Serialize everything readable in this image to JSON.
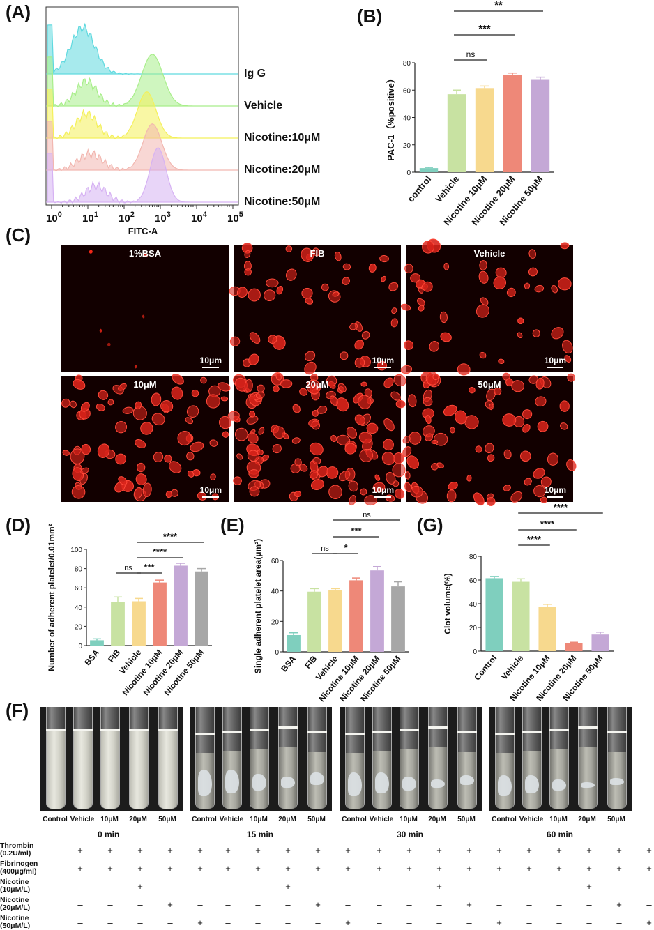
{
  "panels": {
    "A": "(A)",
    "B": "(B)",
    "C": "(C)",
    "D": "(D)",
    "E": "(E)",
    "F": "(F)",
    "G": "(G)"
  },
  "panelA": {
    "series": [
      "Ig G",
      "Vehicle",
      "Nicotine:10μM",
      "Nicotine:20μM",
      "Nicotine:50μM"
    ],
    "colors": [
      "#5fd9df",
      "#a8ee8a",
      "#f4f05a",
      "#f2b7b0",
      "#d6b2f3"
    ],
    "xtick_bases": [
      "10",
      "10",
      "10",
      "10",
      "10",
      "10"
    ],
    "xtick_exps": [
      "0",
      "1",
      "2",
      "3",
      "4",
      "5"
    ],
    "xlabel": "FITC-A"
  },
  "panelC": {
    "images": [
      {
        "label": "1%BSA",
        "scale": "10μm",
        "density": 0
      },
      {
        "label": "FIB",
        "scale": "10μm",
        "density": 2
      },
      {
        "label": "Vehicle",
        "scale": "10μm",
        "density": 2
      },
      {
        "label": "10μM",
        "scale": "10μm",
        "density": 3
      },
      {
        "label": "20μM",
        "scale": "10μm",
        "density": 4
      },
      {
        "label": "50μM",
        "scale": "10μm",
        "density": 3
      }
    ]
  },
  "chart_data": [
    {
      "panel": "B",
      "type": "bar",
      "categories": [
        "control",
        "Vehicle",
        "Nicotine 10μM",
        "Nicotine 20μM",
        "Nicotine 50μM"
      ],
      "values": [
        3,
        57,
        61.5,
        71,
        67.5
      ],
      "errors": [
        0.5,
        3,
        1.5,
        1.5,
        2
      ],
      "colors": [
        "#7fcfbe",
        "#c8e2a2",
        "#f7d98e",
        "#ee8878",
        "#c4a8d6"
      ],
      "ylabel": "PAC-1（%positive）",
      "ylim": [
        0,
        80
      ],
      "yticks": [
        0,
        20,
        40,
        60,
        80
      ],
      "significance": [
        {
          "from": 1,
          "to": 2,
          "label": "ns",
          "level": 1
        },
        {
          "from": 1,
          "to": 3,
          "label": "***",
          "level": 2
        },
        {
          "from": 1,
          "to": 4,
          "label": "**",
          "level": 3
        }
      ]
    },
    {
      "panel": "D",
      "type": "bar",
      "categories": [
        "BSA",
        "FIB",
        "Vehicle",
        "Nicotine 10μM",
        "Nicotine 20μM",
        "Nicotine 50μM"
      ],
      "values": [
        5.5,
        45.5,
        46,
        65.5,
        83,
        77
      ],
      "errors": [
        1.5,
        5,
        3,
        2.5,
        2.5,
        3
      ],
      "colors": [
        "#7fcfbe",
        "#c8e2a2",
        "#f7d98e",
        "#ee8878",
        "#c4a8d6",
        "#a7a7a7"
      ],
      "ylabel": "Number of adherent platelet/0.01mm²",
      "ylim": [
        0,
        100
      ],
      "yticks": [
        0,
        20,
        40,
        60,
        80,
        100
      ],
      "significance": [
        {
          "from": 1,
          "to": 2,
          "label": "ns",
          "level": 1
        },
        {
          "from": 2,
          "to": 3,
          "label": "***",
          "level": 1
        },
        {
          "from": 2,
          "to": 4,
          "label": "****",
          "level": 2
        },
        {
          "from": 2,
          "to": 5,
          "label": "****",
          "level": 3
        }
      ]
    },
    {
      "panel": "E",
      "type": "bar",
      "categories": [
        "BSA",
        "FIB",
        "Vehicle",
        "Nicotine 10μM",
        "Nicotine 20μM",
        "Nicotine 50μM"
      ],
      "values": [
        11,
        39.5,
        40.5,
        47,
        53.5,
        43
      ],
      "errors": [
        1.5,
        2,
        1,
        1.5,
        2.5,
        3
      ],
      "colors": [
        "#7fcfbe",
        "#c8e2a2",
        "#f7d98e",
        "#ee8878",
        "#c4a8d6",
        "#a7a7a7"
      ],
      "ylabel": "Single adherent platelet area(μm²)",
      "ylim": [
        0,
        60
      ],
      "yticks": [
        0,
        20,
        40,
        60
      ],
      "significance": [
        {
          "from": 1,
          "to": 2,
          "label": "ns",
          "level": 1
        },
        {
          "from": 2,
          "to": 3,
          "label": "*",
          "level": 1
        },
        {
          "from": 2,
          "to": 4,
          "label": "***",
          "level": 2
        },
        {
          "from": 2,
          "to": 5,
          "label": "ns",
          "level": 3
        }
      ]
    },
    {
      "panel": "G",
      "type": "bar",
      "categories": [
        "Control",
        "Vehicle",
        "Nicotine 10μM",
        "Nicotine 20μM",
        "Nicotine 50μM"
      ],
      "values": [
        61.5,
        58.5,
        37.5,
        6.5,
        14
      ],
      "errors": [
        1.5,
        2.5,
        2,
        1,
        2
      ],
      "colors": [
        "#7fcfbe",
        "#c8e2a2",
        "#f7d98e",
        "#ee8878",
        "#c4a8d6"
      ],
      "ylabel": "Clot volume(%)",
      "ylim": [
        0,
        80
      ],
      "yticks": [
        0,
        20,
        40,
        60,
        80
      ],
      "significance": [
        {
          "from": 1,
          "to": 2,
          "label": "****",
          "level": 1
        },
        {
          "from": 1,
          "to": 3,
          "label": "****",
          "level": 2
        },
        {
          "from": 1,
          "to": 4,
          "label": "****",
          "level": 3
        }
      ]
    }
  ],
  "panelF": {
    "groups": [
      {
        "time": "0 min",
        "tubes": [
          "Control",
          "Vehicle",
          "10μM",
          "20μM",
          "50μM"
        ],
        "clot": false
      },
      {
        "time": "15 min",
        "tubes": [
          "Control",
          "Vehicle",
          "10μM",
          "20μM",
          "50μM"
        ],
        "clot": true
      },
      {
        "time": "30 min",
        "tubes": [
          "Control",
          "Vehicle",
          "10μM",
          "20μM",
          "50μM"
        ],
        "clot": true
      },
      {
        "time": "60 min",
        "tubes": [
          "Control",
          "Vehicle",
          "10μM",
          "20μM",
          "50μM"
        ],
        "clot": true
      }
    ],
    "rows": [
      {
        "label": [
          "Thrombin",
          "(0.2U/ml)"
        ],
        "marks": [
          "+",
          "+",
          "+",
          "+",
          "+"
        ]
      },
      {
        "label": [
          "Fibrinogen",
          "(400μg/ml)"
        ],
        "marks": [
          "+",
          "+",
          "+",
          "+",
          "+"
        ]
      },
      {
        "label": [
          "Nicotine",
          "(10μM/L)"
        ],
        "marks": [
          "–",
          "–",
          "+",
          "–",
          "–"
        ]
      },
      {
        "label": [
          "Nicotine",
          "(20μM/L)"
        ],
        "marks": [
          "–",
          "–",
          "–",
          "+",
          "–"
        ]
      },
      {
        "label": [
          "Nicotine",
          "(50μM/L)"
        ],
        "marks": [
          "–",
          "–",
          "–",
          "–",
          "+"
        ]
      }
    ]
  }
}
